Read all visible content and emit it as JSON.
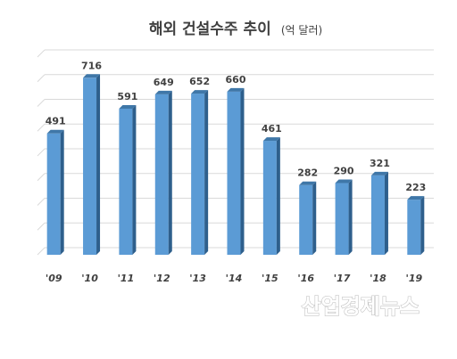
{
  "chart_data": {
    "type": "bar",
    "title": "해외 건설수주 추이",
    "subtitle": "(억 달러)",
    "categories": [
      "'09",
      "'10",
      "'11",
      "'12",
      "'13",
      "'14",
      "'15",
      "'16",
      "'17",
      "'18",
      "'19"
    ],
    "values": [
      491,
      716,
      591,
      649,
      652,
      660,
      461,
      282,
      290,
      321,
      223
    ],
    "ylim": [
      0,
      800
    ],
    "grid": true,
    "bar_color": "#5b9bd5",
    "bar_side_color": "#2e5f8c",
    "bar_top_color": "#3f77a8",
    "xlabel": "",
    "ylabel": ""
  },
  "watermark": "산업경제뉴스"
}
